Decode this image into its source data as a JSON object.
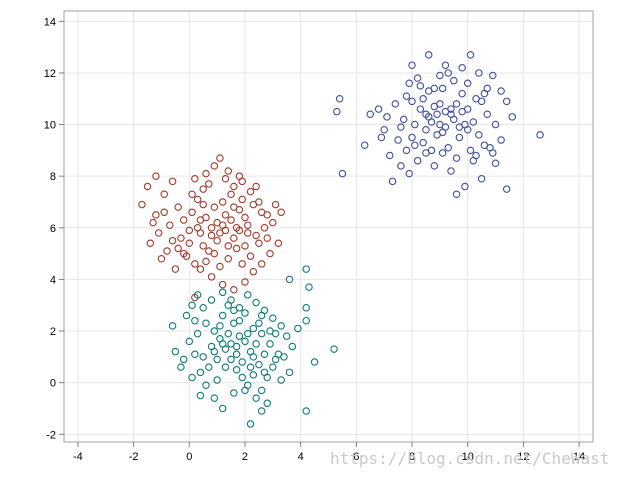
{
  "chart_data": {
    "type": "scatter",
    "title": "",
    "xlabel": "",
    "ylabel": "",
    "xlim": [
      -4.5,
      14.5
    ],
    "ylim": [
      -2.3,
      14.4
    ],
    "xticks": [
      -4,
      -2,
      0,
      2,
      4,
      6,
      8,
      10,
      12,
      14
    ],
    "yticks": [
      -2,
      0,
      2,
      4,
      6,
      8,
      10,
      12,
      14
    ],
    "grid": true,
    "marker": "open-circle",
    "series": [
      {
        "color": "#a33a2a",
        "points": [
          [
            -1.5,
            7.6
          ],
          [
            -1.2,
            8.0
          ],
          [
            -1.7,
            6.9
          ],
          [
            -0.6,
            7.8
          ],
          [
            -0.9,
            7.3
          ],
          [
            -1.3,
            6.2
          ],
          [
            -0.4,
            6.8
          ],
          [
            -1.1,
            5.8
          ],
          [
            -0.2,
            6.3
          ],
          [
            -1.4,
            5.4
          ],
          [
            -0.8,
            5.1
          ],
          [
            -0.3,
            5.6
          ],
          [
            -1.0,
            4.8
          ],
          [
            -0.5,
            4.4
          ],
          [
            -0.1,
            4.9
          ],
          [
            0.0,
            5.9
          ],
          [
            0.1,
            6.6
          ],
          [
            0.3,
            7.1
          ],
          [
            0.5,
            7.5
          ],
          [
            0.2,
            7.9
          ],
          [
            0.6,
            8.1
          ],
          [
            0.9,
            8.4
          ],
          [
            1.1,
            8.7
          ],
          [
            1.4,
            8.2
          ],
          [
            1.6,
            7.6
          ],
          [
            1.9,
            7.8
          ],
          [
            2.2,
            7.4
          ],
          [
            2.5,
            7.0
          ],
          [
            2.8,
            6.5
          ],
          [
            3.1,
            6.9
          ],
          [
            3.3,
            6.6
          ],
          [
            3.2,
            5.4
          ],
          [
            2.9,
            5.0
          ],
          [
            2.6,
            4.6
          ],
          [
            2.3,
            4.3
          ],
          [
            2.0,
            3.9
          ],
          [
            1.6,
            3.6
          ],
          [
            1.2,
            3.8
          ],
          [
            0.8,
            4.1
          ],
          [
            0.4,
            4.4
          ],
          [
            0.2,
            3.3
          ],
          [
            0.7,
            5.1
          ],
          [
            1.0,
            5.5
          ],
          [
            1.3,
            5.9
          ],
          [
            1.5,
            6.3
          ],
          [
            1.8,
            6.7
          ],
          [
            2.1,
            6.1
          ],
          [
            2.4,
            5.7
          ],
          [
            2.7,
            6.0
          ],
          [
            1.7,
            5.2
          ],
          [
            1.4,
            4.8
          ],
          [
            1.1,
            4.5
          ],
          [
            0.9,
            6.8
          ],
          [
            0.6,
            6.4
          ],
          [
            0.3,
            6.0
          ],
          [
            0.0,
            5.4
          ],
          [
            -0.4,
            5.2
          ],
          [
            -0.7,
            6.1
          ],
          [
            -0.9,
            6.6
          ],
          [
            1.2,
            7.0
          ],
          [
            1.9,
            7.1
          ],
          [
            2.3,
            6.9
          ],
          [
            0.4,
            5.8
          ],
          [
            0.8,
            5.7
          ],
          [
            1.6,
            5.6
          ],
          [
            2.0,
            5.3
          ],
          [
            2.2,
            4.9
          ],
          [
            1.0,
            6.2
          ],
          [
            0.5,
            6.9
          ],
          [
            1.3,
            6.5
          ],
          [
            1.7,
            6.0
          ],
          [
            2.6,
            6.6
          ],
          [
            0.1,
            7.3
          ],
          [
            -0.2,
            5.0
          ],
          [
            0.6,
            4.7
          ],
          [
            1.9,
            4.6
          ],
          [
            2.8,
            5.6
          ],
          [
            3.0,
            6.2
          ],
          [
            1.5,
            7.3
          ],
          [
            0.7,
            7.7
          ],
          [
            1.8,
            8.0
          ],
          [
            1.3,
            7.9
          ],
          [
            2.4,
            7.6
          ],
          [
            2.0,
            6.4
          ],
          [
            0.9,
            5.0
          ],
          [
            1.4,
            5.3
          ],
          [
            0.2,
            4.6
          ],
          [
            -0.6,
            5.5
          ],
          [
            -1.2,
            6.5
          ],
          [
            0.4,
            6.3
          ],
          [
            1.1,
            5.8
          ],
          [
            1.6,
            6.8
          ],
          [
            2.5,
            5.4
          ],
          [
            2.1,
            5.8
          ],
          [
            0.8,
            6.0
          ],
          [
            1.2,
            6.1
          ],
          [
            1.8,
            5.9
          ],
          [
            0.5,
            5.3
          ]
        ]
      },
      {
        "color": "#107a7a",
        "points": [
          [
            -0.6,
            2.2
          ],
          [
            -0.1,
            2.6
          ],
          [
            0.1,
            3.0
          ],
          [
            0.3,
            3.4
          ],
          [
            0.5,
            2.9
          ],
          [
            0.8,
            3.2
          ],
          [
            1.2,
            3.5
          ],
          [
            1.5,
            3.2
          ],
          [
            1.8,
            2.9
          ],
          [
            2.1,
            3.4
          ],
          [
            2.4,
            3.1
          ],
          [
            2.7,
            2.8
          ],
          [
            3.0,
            2.5
          ],
          [
            3.3,
            2.2
          ],
          [
            3.5,
            1.8
          ],
          [
            3.7,
            1.4
          ],
          [
            3.9,
            2.1
          ],
          [
            4.2,
            2.9
          ],
          [
            4.3,
            3.7
          ],
          [
            4.2,
            4.4
          ],
          [
            3.6,
            4.0
          ],
          [
            4.2,
            2.4
          ],
          [
            4.5,
            0.8
          ],
          [
            5.2,
            1.3
          ],
          [
            4.2,
            -1.1
          ],
          [
            2.6,
            -1.1
          ],
          [
            2.2,
            -1.6
          ],
          [
            1.2,
            -1.0
          ],
          [
            0.9,
            -0.6
          ],
          [
            0.4,
            -0.5
          ],
          [
            0.1,
            0.2
          ],
          [
            -0.3,
            0.6
          ],
          [
            -0.5,
            1.2
          ],
          [
            0.0,
            1.6
          ],
          [
            0.3,
            1.9
          ],
          [
            0.6,
            2.3
          ],
          [
            0.9,
            2.0
          ],
          [
            1.1,
            1.7
          ],
          [
            1.3,
            1.3
          ],
          [
            1.5,
            0.9
          ],
          [
            1.7,
            0.5
          ],
          [
            1.9,
            0.2
          ],
          [
            2.1,
            -0.1
          ],
          [
            2.3,
            0.3
          ],
          [
            2.5,
            0.7
          ],
          [
            2.7,
            1.1
          ],
          [
            2.9,
            1.5
          ],
          [
            3.1,
            1.9
          ],
          [
            3.2,
            1.1
          ],
          [
            3.0,
            0.6
          ],
          [
            2.8,
            0.2
          ],
          [
            2.6,
            -0.3
          ],
          [
            2.4,
            -0.6
          ],
          [
            1.6,
            -0.4
          ],
          [
            1.0,
            0.1
          ],
          [
            0.7,
            0.6
          ],
          [
            0.5,
            1.0
          ],
          [
            0.8,
            1.4
          ],
          [
            1.4,
            1.9
          ],
          [
            1.6,
            2.3
          ],
          [
            2.0,
            1.6
          ],
          [
            2.2,
            1.2
          ],
          [
            2.6,
            1.9
          ],
          [
            3.4,
            1.0
          ],
          [
            3.6,
            0.4
          ],
          [
            1.2,
            2.6
          ],
          [
            1.8,
            2.4
          ],
          [
            2.3,
            2.1
          ],
          [
            0.2,
            1.1
          ],
          [
            0.4,
            0.4
          ],
          [
            -0.2,
            0.9
          ],
          [
            1.7,
            1.1
          ],
          [
            1.9,
            0.8
          ],
          [
            2.0,
            2.7
          ],
          [
            2.5,
            2.3
          ],
          [
            1.3,
            0.6
          ],
          [
            1.1,
            2.2
          ],
          [
            2.8,
            -0.8
          ],
          [
            3.3,
            0.1
          ],
          [
            0.6,
            -0.1
          ],
          [
            1.5,
            1.5
          ],
          [
            2.2,
            0.6
          ],
          [
            2.9,
            2.0
          ],
          [
            1.0,
            0.9
          ],
          [
            0.2,
            2.4
          ],
          [
            1.4,
            3.0
          ],
          [
            2.6,
            2.6
          ],
          [
            3.1,
            0.9
          ],
          [
            1.8,
            1.8
          ],
          [
            2.4,
            1.5
          ],
          [
            0.9,
            1.2
          ],
          [
            1.6,
            2.8
          ],
          [
            2.0,
            -0.3
          ],
          [
            2.7,
            0.4
          ],
          [
            1.2,
            1.5
          ],
          [
            2.1,
            1.9
          ],
          [
            1.7,
            1.4
          ],
          [
            2.3,
            1.0
          ]
        ]
      },
      {
        "color": "#3f4f9c",
        "points": [
          [
            5.3,
            10.5
          ],
          [
            5.4,
            11.0
          ],
          [
            5.5,
            8.1
          ],
          [
            6.3,
            9.2
          ],
          [
            6.5,
            10.4
          ],
          [
            6.8,
            10.6
          ],
          [
            7.0,
            9.8
          ],
          [
            7.2,
            8.8
          ],
          [
            7.3,
            7.8
          ],
          [
            7.5,
            9.4
          ],
          [
            7.7,
            10.2
          ],
          [
            7.8,
            11.1
          ],
          [
            7.9,
            11.6
          ],
          [
            8.0,
            12.3
          ],
          [
            8.2,
            11.8
          ],
          [
            8.4,
            11.0
          ],
          [
            8.5,
            10.4
          ],
          [
            8.6,
            12.7
          ],
          [
            8.8,
            11.4
          ],
          [
            9.0,
            11.9
          ],
          [
            9.2,
            12.3
          ],
          [
            9.5,
            11.7
          ],
          [
            9.8,
            12.2
          ],
          [
            10.1,
            12.7
          ],
          [
            10.4,
            12.0
          ],
          [
            10.7,
            11.4
          ],
          [
            10.9,
            11.9
          ],
          [
            11.2,
            11.3
          ],
          [
            11.4,
            10.9
          ],
          [
            11.6,
            10.3
          ],
          [
            12.6,
            9.6
          ],
          [
            11.4,
            7.5
          ],
          [
            11.0,
            8.5
          ],
          [
            10.8,
            9.1
          ],
          [
            10.5,
            7.9
          ],
          [
            10.2,
            8.6
          ],
          [
            9.9,
            7.6
          ],
          [
            9.6,
            7.3
          ],
          [
            9.4,
            8.2
          ],
          [
            9.1,
            8.9
          ],
          [
            8.8,
            8.4
          ],
          [
            8.5,
            8.9
          ],
          [
            8.2,
            8.6
          ],
          [
            7.9,
            8.1
          ],
          [
            7.6,
            8.4
          ],
          [
            7.8,
            9.0
          ],
          [
            8.0,
            9.5
          ],
          [
            8.1,
            10.0
          ],
          [
            8.3,
            10.6
          ],
          [
            8.7,
            10.1
          ],
          [
            8.9,
            9.6
          ],
          [
            9.2,
            9.9
          ],
          [
            9.4,
            10.4
          ],
          [
            9.6,
            10.8
          ],
          [
            9.8,
            11.2
          ],
          [
            10.0,
            10.6
          ],
          [
            10.2,
            10.1
          ],
          [
            10.4,
            9.6
          ],
          [
            10.6,
            9.2
          ],
          [
            10.3,
            8.8
          ],
          [
            9.0,
            10.8
          ],
          [
            8.6,
            11.3
          ],
          [
            8.4,
            9.3
          ],
          [
            9.3,
            9.1
          ],
          [
            9.7,
            9.5
          ],
          [
            10.1,
            9.0
          ],
          [
            10.5,
            10.9
          ],
          [
            9.1,
            11.4
          ],
          [
            8.9,
            10.4
          ],
          [
            9.5,
            10.2
          ],
          [
            7.4,
            10.8
          ],
          [
            7.6,
            9.9
          ],
          [
            8.7,
            9.0
          ],
          [
            9.9,
            10.0
          ],
          [
            10.7,
            10.4
          ],
          [
            11.0,
            10.0
          ],
          [
            8.3,
            11.5
          ],
          [
            9.3,
            12.0
          ],
          [
            10.0,
            11.6
          ],
          [
            7.1,
            10.3
          ],
          [
            6.9,
            9.5
          ],
          [
            11.2,
            9.4
          ],
          [
            8.0,
            10.9
          ],
          [
            9.6,
            8.7
          ],
          [
            10.9,
            8.9
          ],
          [
            8.5,
            9.8
          ],
          [
            9.0,
            10.0
          ],
          [
            9.4,
            10.6
          ],
          [
            10.3,
            11.0
          ],
          [
            8.8,
            10.7
          ],
          [
            9.7,
            9.9
          ],
          [
            10.6,
            11.2
          ],
          [
            8.1,
            9.2
          ],
          [
            9.2,
            10.5
          ],
          [
            8.6,
            10.3
          ],
          [
            9.8,
            10.5
          ],
          [
            10.0,
            9.8
          ],
          [
            9.1,
            9.7
          ]
        ]
      }
    ]
  },
  "watermark": "https://blog.csdn.net/CheWast"
}
